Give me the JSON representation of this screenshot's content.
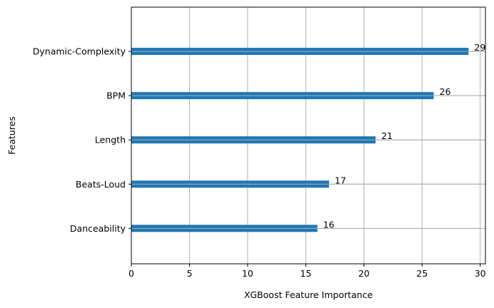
{
  "chart_data": {
    "type": "bar",
    "orientation": "horizontal",
    "title": "",
    "xlabel": "XGBoost Feature Importance",
    "ylabel": "Features",
    "categories": [
      "Dynamic-Complexity",
      "BPM",
      "Length",
      "Beats-Loud",
      "Danceability"
    ],
    "values": [
      29,
      26,
      21,
      17,
      16
    ],
    "data_labels": [
      "29",
      "26",
      "21",
      "17",
      "16"
    ],
    "xlim": [
      0,
      30.45
    ],
    "xticks": [
      0,
      5,
      10,
      15,
      20,
      25,
      30
    ],
    "xtick_labels": [
      "0",
      "5",
      "10",
      "15",
      "20",
      "25",
      "30"
    ],
    "grid": true,
    "bar_color": "#1f77b4",
    "grid_color": "#b0b0b0"
  }
}
